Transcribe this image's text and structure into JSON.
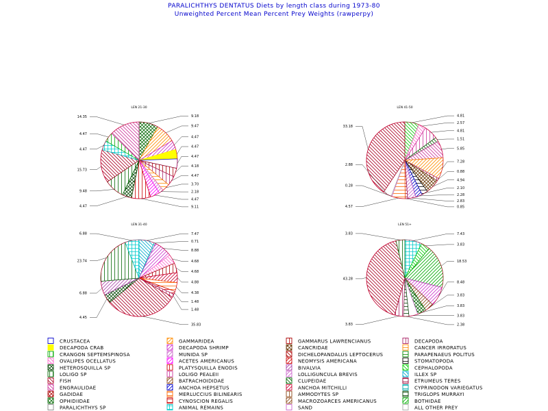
{
  "page": {
    "title": "PARALICHTHYS DENTATUS  Diets by length class during  1973-80",
    "subtitle": "Unweighted Percent Mean Percent Prey  Weights (rawperpy)"
  },
  "chart_data": [
    {
      "type": "pie",
      "title": "LEN 21-30",
      "slices": [
        {
          "prey": "OPHIDIIDAE",
          "value": 9.18
        },
        {
          "prey": "GAMMARIDEA",
          "value": 9.47
        },
        {
          "prey": "DECAPODA SHRIMP",
          "value": 4.47
        },
        {
          "prey": "DECAPODA CRAB",
          "value": 4.47
        },
        {
          "prey": "CRUSTACEA",
          "value": 4.47
        },
        {
          "prey": "GAMMARUS LAWRENCIANUS",
          "value": 4.18
        },
        {
          "prey": "DECAPODA",
          "value": 4.47
        },
        {
          "prey": "CANCER IRRORATUS",
          "value": 3.7
        },
        {
          "prey": "MUNIDA SP",
          "value": 2.18
        },
        {
          "prey": "ACETES AMERICANUS",
          "value": 4.47
        },
        {
          "prey": "PLATYSQUILLA ENODIS",
          "value": 9.11
        },
        {
          "prey": "HETEROSQUILLA SP",
          "value": 4.47
        },
        {
          "prey": "LOLIGO SP",
          "value": 9.48
        },
        {
          "prey": "FISH",
          "value": 15.73
        },
        {
          "prey": "ANIMAL REMAINS",
          "value": 4.47
        },
        {
          "prey": "CRANGON SEPTEMSPINOSA",
          "value": 4.47
        },
        {
          "prey": "ENGRAULIDAE",
          "value": 14.35
        }
      ]
    },
    {
      "type": "pie",
      "title": "LEN 41-50",
      "slices": [
        {
          "prey": "CEPHALOPODA",
          "value": 4.81
        },
        {
          "prey": "OVALIPES OCELLATUS",
          "value": 2.57
        },
        {
          "prey": "LOLIGO PEALEII",
          "value": 4.81
        },
        {
          "prey": "CLUPEIDAE",
          "value": 1.51
        },
        {
          "prey": "ENGRAULIDAE",
          "value": 5.85
        },
        {
          "prey": "GAMMARIDEA",
          "value": 7.28
        },
        {
          "prey": "DECAPODA",
          "value": 0.88
        },
        {
          "prey": "CANCRIDAE",
          "value": 4.94
        },
        {
          "prey": "STOMATOPODA",
          "value": 2.1
        },
        {
          "prey": "ANCHOA HEPSETUS",
          "value": 2.28
        },
        {
          "prey": "LOLLIGUNCULA BREVIS",
          "value": 2.83
        },
        {
          "prey": "ETRUMEUS TERES",
          "value": 0.85
        },
        {
          "prey": "MERLUCCIUS BILINEARIS",
          "value": 4.57
        },
        {
          "prey": "SAND",
          "value": 0.28
        },
        {
          "prey": "ALL OTHER PREY",
          "value": 2.88
        },
        {
          "prey": "FISH",
          "value": 33.18
        }
      ]
    },
    {
      "type": "pie",
      "title": "LEN 31-40",
      "slices": [
        {
          "prey": "ILLEX SP",
          "value": 7.47
        },
        {
          "prey": "CYPRINODON VARIEGATUS",
          "value": 0.71
        },
        {
          "prey": "DECAPODA SHRIMP",
          "value": 8.88
        },
        {
          "prey": "OVALIPES OCELLATUS",
          "value": 4.68
        },
        {
          "prey": "GAMMARUS LAWRENCIANUS",
          "value": 4.68
        },
        {
          "prey": "ANCHOA MITCHILLI",
          "value": 4.88
        },
        {
          "prey": "MERLUCCIUS BILINEARIS",
          "value": 4.38
        },
        {
          "prey": "CYNOSCION REGALIS",
          "value": 1.48
        },
        {
          "prey": "DECAPODA",
          "value": 1.48
        },
        {
          "prey": "FISH",
          "value": 35.83
        },
        {
          "prey": "HETEROSQUILLA SP",
          "value": 4.45
        },
        {
          "prey": "BIVALVIA",
          "value": 6.88
        },
        {
          "prey": "LOLIGO SP",
          "value": 23.74
        },
        {
          "prey": "ANIMAL REMAINS",
          "value": 6.88
        }
      ]
    },
    {
      "type": "pie",
      "title": "LEN 51+",
      "slices": [
        {
          "prey": "ANIMAL REMAINS",
          "value": 7.43
        },
        {
          "prey": "CEPHALOPODA",
          "value": 3.83
        },
        {
          "prey": "BOTHIDAE",
          "value": 18.53
        },
        {
          "prey": "DECAPODA SHRIMP",
          "value": 8.48
        },
        {
          "prey": "MACROZOARCES AMERICANUS",
          "value": 3.83
        },
        {
          "prey": "OPHIDIIDAE",
          "value": 3.83
        },
        {
          "prey": "SAND",
          "value": 3.83
        },
        {
          "prey": "TRIGLOPS MURRAYI",
          "value": 2.38
        },
        {
          "prey": "DECAPODA",
          "value": 3.83
        },
        {
          "prey": "FISH",
          "value": 43.28
        },
        {
          "prey": "LOLIGO SP",
          "value": 3.83
        }
      ]
    }
  ],
  "legend": [
    {
      "label": "CRUSTACEA",
      "color": "#0000cc",
      "pat": "box"
    },
    {
      "label": "GAMMARIDEA",
      "color": "#ff8c00",
      "pat": "diag"
    },
    {
      "label": "GAMMARUS LAWRENCIANUS",
      "color": "#aa0000",
      "pat": "vert"
    },
    {
      "label": "DECAPODA",
      "color": "#aa2266",
      "pat": "vert"
    },
    {
      "label": "DECAPODA CRAB",
      "color": "#ffff00",
      "pat": "solid"
    },
    {
      "label": "DECAPODA SHRIMP",
      "color": "#cc33cc",
      "pat": "diag"
    },
    {
      "label": "CANCRIDAE",
      "color": "#663300",
      "pat": "cross"
    },
    {
      "label": "CANCER IRRORATUS",
      "color": "#ff8c00",
      "pat": "horiz"
    },
    {
      "label": "CRANGON SEPTEMSPINOSA",
      "color": "#00aa00",
      "pat": "vert"
    },
    {
      "label": "MUNIDA SP",
      "color": "#cc66cc",
      "pat": "diag"
    },
    {
      "label": "DICHELOPANDALUS LEPTOCERUS",
      "color": "#aa0000",
      "pat": "anti"
    },
    {
      "label": "PARAPENAEUS POLITUS",
      "color": "#008800",
      "pat": "horiz"
    },
    {
      "label": "OVALIPES OCELLATUS",
      "color": "#ff66cc",
      "pat": "anti"
    },
    {
      "label": "ACETES AMERICANUS",
      "color": "#ff00ff",
      "pat": "diag"
    },
    {
      "label": "NEOMYSIS AMERICANA",
      "color": "#cc0000",
      "pat": "diag"
    },
    {
      "label": "STOMATOPODA",
      "color": "#000000",
      "pat": "horiz"
    },
    {
      "label": "HETEROSQUILLA SP",
      "color": "#004400",
      "pat": "cross"
    },
    {
      "label": "PLATYSQUILLA ENODIS",
      "color": "#cc0000",
      "pat": "vert"
    },
    {
      "label": "BIVALVIA",
      "color": "#aa44aa",
      "pat": "diag"
    },
    {
      "label": "CEPHALOPODA",
      "color": "#00cc00",
      "pat": "anti"
    },
    {
      "label": "LOLIGO SP",
      "color": "#006600",
      "pat": "vert"
    },
    {
      "label": "LOLIGO PEALEII",
      "color": "#cc3399",
      "pat": "vert"
    },
    {
      "label": "LOLLIGUNCULA BREVIS",
      "color": "#cc66cc",
      "pat": "diag"
    },
    {
      "label": "ILLEX SP",
      "color": "#00aacc",
      "pat": "anti"
    },
    {
      "label": "FISH",
      "color": "#aa0022",
      "pat": "anti"
    },
    {
      "label": "BATRACHOIDIDAE",
      "color": "#8b4513",
      "pat": "diag"
    },
    {
      "label": "CLUPEIDAE",
      "color": "#006600",
      "pat": "anti"
    },
    {
      "label": "ETRUMEUS TERES",
      "color": "#990033",
      "pat": "horiz"
    },
    {
      "label": "ENGRAULIDAE",
      "color": "#cc3399",
      "pat": "anti"
    },
    {
      "label": "ANCHOA HEPSETUS",
      "color": "#0000cc",
      "pat": "diag"
    },
    {
      "label": "ANCHOA MITCHILLI",
      "color": "#cc0033",
      "pat": "diag"
    },
    {
      "label": "CYPRINODON VARIEGATUS",
      "color": "#00aaaa",
      "pat": "horiz"
    },
    {
      "label": "GADIDAE",
      "color": "#aa0000",
      "pat": "cross"
    },
    {
      "label": "MERLUCCIUS BILINEARIS",
      "color": "#ff6600",
      "pat": "horiz"
    },
    {
      "label": "AMMODYTES SP",
      "color": "#8b4513",
      "pat": "vert"
    },
    {
      "label": "TRIGLOPS MURRAYI",
      "color": "#004400",
      "pat": "horiz"
    },
    {
      "label": "OPHIDIIDAE",
      "color": "#006600",
      "pat": "cross"
    },
    {
      "label": "CYNOSCION REGALIS",
      "color": "#cc0000",
      "pat": "horiz"
    },
    {
      "label": "MACROZOARCES AMERICANUS",
      "color": "#8b4513",
      "pat": "diag"
    },
    {
      "label": "BOTHIDAE",
      "color": "#00aa00",
      "pat": "diag"
    },
    {
      "label": "PARALICHTHYS SP",
      "color": "#888888",
      "pat": "box"
    },
    {
      "label": "ANIMAL REMAINS",
      "color": "#00cccc",
      "pat": "grid"
    },
    {
      "label": "SAND",
      "color": "#cc66cc",
      "pat": "box"
    },
    {
      "label": "ALL OTHER PREY",
      "color": "#aaaaaa",
      "pat": "box"
    }
  ]
}
